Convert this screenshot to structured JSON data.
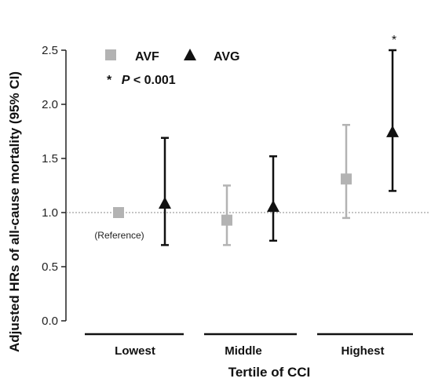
{
  "chart_data": {
    "type": "scatter",
    "xlabel": "Tertile of CCI",
    "ylabel": "Adjusted HRs of all-cause mortality  (95% CI)",
    "ylim": [
      0,
      2.5
    ],
    "yticks": [
      "0.0",
      "0.5",
      "1.0",
      "1.5",
      "2.0",
      "2.5"
    ],
    "categories": [
      "Lowest",
      "Middle",
      "Highest"
    ],
    "reference_line": 1.0,
    "reference_label": "(Reference)",
    "grid": false,
    "legend_position": "top-left",
    "series": [
      {
        "name": "AVF",
        "marker": "square",
        "color": "#b3b3b3",
        "values": [
          1.0,
          0.93,
          1.31
        ],
        "ci_low": [
          null,
          0.7,
          0.95
        ],
        "ci_high": [
          null,
          1.25,
          1.81
        ]
      },
      {
        "name": "AVG",
        "marker": "triangle",
        "color": "#111111",
        "values": [
          1.08,
          1.05,
          1.74
        ],
        "ci_low": [
          0.7,
          0.74,
          1.2
        ],
        "ci_high": [
          1.69,
          1.52,
          2.5
        ]
      }
    ],
    "annotations": {
      "significance_marker": "*",
      "significance_category": "Highest",
      "significance_series": "AVG",
      "p_star": "*",
      "p_italic": "P",
      "p_rest": " < 0.001"
    }
  }
}
